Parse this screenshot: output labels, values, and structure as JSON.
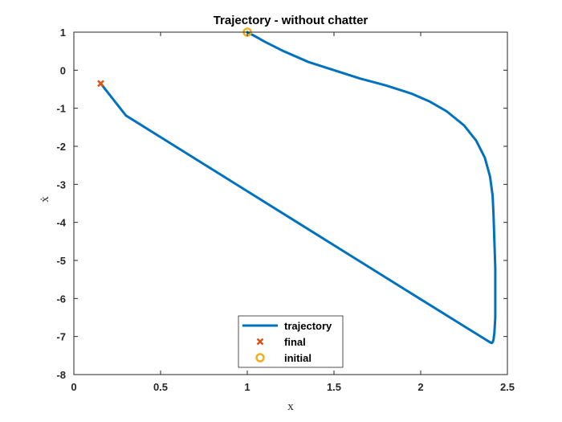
{
  "chart_data": {
    "type": "line",
    "title": "Trajectory - without chatter",
    "xlabel": "x",
    "ylabel": "ẋ",
    "xlim": [
      0,
      2.5
    ],
    "ylim": [
      -8,
      1
    ],
    "xticks": [
      0,
      0.5,
      1,
      1.5,
      2,
      2.5
    ],
    "xtick_labels": [
      "0",
      "0.5",
      "1",
      "1.5",
      "2",
      "2.5"
    ],
    "yticks": [
      1,
      0,
      -1,
      -2,
      -3,
      -4,
      -5,
      -6,
      -7,
      -8
    ],
    "ytick_labels": [
      "1",
      "0",
      "-1",
      "-2",
      "-3",
      "-4",
      "-5",
      "-6",
      "-7",
      "-8"
    ],
    "grid": false,
    "legend_position": "bottom-center",
    "series": [
      {
        "name": "trajectory",
        "color": "#0072BD",
        "x": [
          1.0,
          1.05,
          1.1,
          1.2,
          1.35,
          1.5,
          1.65,
          1.8,
          1.95,
          2.05,
          2.15,
          2.25,
          2.32,
          2.37,
          2.4,
          2.415,
          2.42,
          2.425,
          2.43,
          2.43,
          2.43,
          2.425,
          2.42,
          2.415,
          2.41,
          2.4,
          2.3,
          2.0,
          1.5,
          1.0,
          0.5,
          0.3,
          0.155
        ],
        "y": [
          1.0,
          0.88,
          0.75,
          0.52,
          0.22,
          0.0,
          -0.22,
          -0.4,
          -0.62,
          -0.82,
          -1.08,
          -1.45,
          -1.85,
          -2.3,
          -2.8,
          -3.3,
          -3.8,
          -4.5,
          -5.2,
          -5.9,
          -6.5,
          -6.9,
          -7.08,
          -7.15,
          -7.17,
          -7.15,
          -6.87,
          -6.02,
          -4.6,
          -3.18,
          -1.76,
          -1.19,
          -0.35
        ]
      },
      {
        "name": "final",
        "color": "#D95319",
        "marker": "x",
        "x": [
          0.155
        ],
        "y": [
          -0.35
        ]
      },
      {
        "name": "initial",
        "color": "#EDB120",
        "marker": "o",
        "x": [
          1.0
        ],
        "y": [
          1.0
        ]
      }
    ],
    "legend": [
      {
        "label": "trajectory",
        "color": "#0072BD",
        "symbol": "line"
      },
      {
        "label": "final",
        "color": "#D95319",
        "symbol": "x"
      },
      {
        "label": "initial",
        "color": "#EDB120",
        "symbol": "o"
      }
    ]
  }
}
